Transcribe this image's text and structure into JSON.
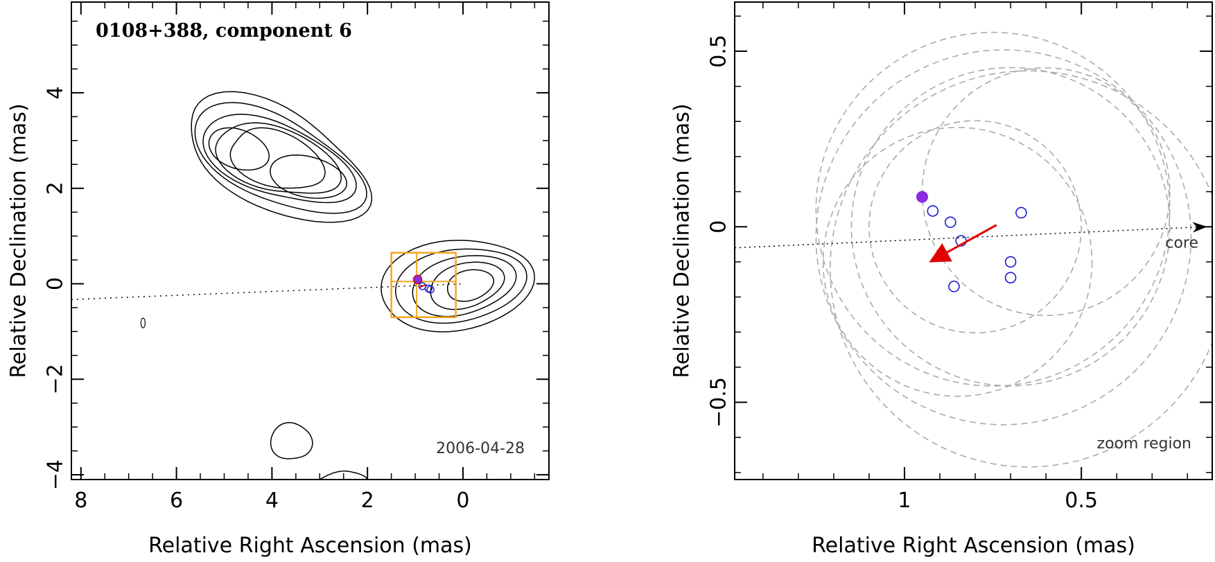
{
  "chart_data": [
    {
      "type": "contour",
      "title": "0108+388, component 6",
      "epoch": "2006-04-28",
      "xlabel": "Relative Right Ascension (mas)",
      "ylabel": "Relative Declination (mas)",
      "xlim": [
        8.2,
        -1.8
      ],
      "ylim": [
        -4.1,
        5.9
      ],
      "xticks": [
        8,
        6,
        4,
        2,
        0
      ],
      "xtick_labels": [
        "8",
        "6",
        "4",
        "2",
        "0"
      ],
      "yticks": [
        4,
        2,
        0,
        -2,
        -4
      ],
      "ytick_labels": [
        "4",
        "2",
        "0",
        "−2",
        "−4"
      ],
      "contours": [
        {
          "name": "northern-lobe",
          "center": [
            3.9,
            2.6
          ],
          "levels": 5
        },
        {
          "name": "core-region",
          "center": [
            0.0,
            0.0
          ],
          "levels": 5
        },
        {
          "name": "southern-blob",
          "center": [
            3.6,
            -3.3
          ],
          "levels": 1
        },
        {
          "name": "small-island",
          "center": [
            6.7,
            -0.82
          ],
          "levels": 1
        }
      ],
      "jet_line": {
        "from": [
          8.2,
          -0.33
        ],
        "to": [
          0.0,
          0.0
        ]
      },
      "zoom_box": {
        "x": [
          1.5,
          0.15
        ],
        "y": [
          -0.7,
          0.65
        ]
      },
      "component_markers": [
        [
          0.95,
          0.09
        ],
        [
          0.85,
          -0.05
        ],
        [
          0.72,
          -0.1
        ],
        [
          0.68,
          -0.12
        ]
      ]
    },
    {
      "type": "scatter",
      "xlabel": "Relative Right Ascension (mas)",
      "ylabel": "Relative Declination (mas)",
      "xlim": [
        1.48,
        0.13
      ],
      "ylim": [
        -0.72,
        0.64
      ],
      "xticks": [
        1,
        0.5
      ],
      "xtick_labels": [
        "1",
        "0.5"
      ],
      "yticks": [
        0.5,
        0,
        -0.5
      ],
      "ytick_labels": [
        "0.5",
        "0",
        "−0.5"
      ],
      "core_label": "core",
      "zoom_label": "zoom region",
      "filled_point": [
        0.95,
        0.085
      ],
      "open_points": [
        [
          0.92,
          0.045
        ],
        [
          0.87,
          0.013
        ],
        [
          0.84,
          -0.04
        ],
        [
          0.67,
          0.04
        ],
        [
          0.7,
          -0.1
        ],
        [
          0.7,
          -0.145
        ],
        [
          0.86,
          -0.17
        ]
      ],
      "arrow": {
        "from": [
          0.74,
          0.005
        ],
        "to": [
          0.91,
          -0.09
        ]
      },
      "jet_line": {
        "from": [
          1.48,
          -0.06
        ],
        "to": [
          0.15,
          0.0
        ]
      },
      "beam_circles": [
        {
          "center": [
            0.65,
            -0.12
          ],
          "r": 0.56
        },
        {
          "center": [
            0.72,
            -0.03
          ],
          "r": 0.53
        },
        {
          "center": [
            0.75,
            0.05
          ],
          "r": 0.5
        },
        {
          "center": [
            0.7,
            0.0
          ],
          "r": 0.45
        },
        {
          "center": [
            0.85,
            -0.1
          ],
          "r": 0.38
        },
        {
          "center": [
            0.6,
            0.1
          ],
          "r": 0.35
        },
        {
          "center": [
            0.8,
            0.0
          ],
          "r": 0.3
        }
      ]
    }
  ]
}
